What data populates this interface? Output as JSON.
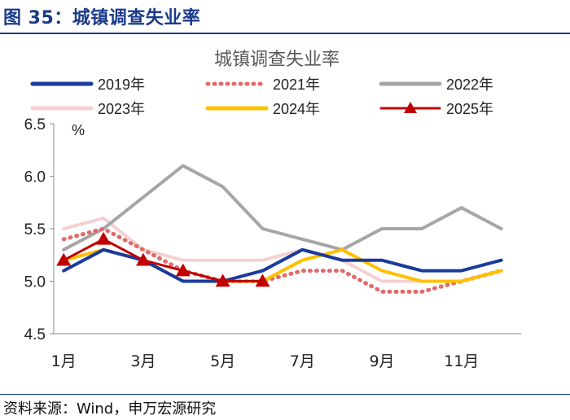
{
  "figure": {
    "title": "图 35：城镇调查失业率",
    "source": "资料来源：Wind，申万宏源研究"
  },
  "chart_data": {
    "type": "line",
    "title": "城镇调查失业率",
    "ylabel": "%",
    "xlabel": "",
    "ylim": [
      4.5,
      6.5
    ],
    "yticks": [
      "6.5",
      "6.0",
      "5.5",
      "5.0",
      "4.5"
    ],
    "ytick_values": [
      6.5,
      6.0,
      5.5,
      5.0,
      4.5
    ],
    "x": [
      1,
      2,
      3,
      4,
      5,
      6,
      7,
      8,
      9,
      10,
      11,
      12
    ],
    "xticks": [
      "1月",
      "3月",
      "5月",
      "7月",
      "9月",
      "11月"
    ],
    "xtick_values": [
      1,
      3,
      5,
      7,
      9,
      11
    ],
    "series": [
      {
        "name": "2019年",
        "color": "#1a3a9c",
        "style": "solid",
        "x": [
          1,
          2,
          3,
          4,
          5,
          6,
          7,
          8,
          9,
          10,
          11,
          12
        ],
        "values": [
          5.1,
          5.3,
          5.2,
          5.0,
          5.0,
          5.1,
          5.3,
          5.2,
          5.2,
          5.1,
          5.1,
          5.2
        ]
      },
      {
        "name": "2021年",
        "color": "#e06b6b",
        "style": "dotted",
        "x": [
          1,
          2,
          3,
          4,
          5,
          6,
          7,
          8,
          9,
          10,
          11,
          12
        ],
        "values": [
          5.4,
          5.5,
          5.3,
          5.1,
          5.0,
          5.0,
          5.1,
          5.1,
          4.9,
          4.9,
          5.0,
          5.1
        ]
      },
      {
        "name": "2022年",
        "color": "#a6a6a6",
        "style": "solid",
        "x": [
          1,
          2,
          3,
          4,
          5,
          6,
          7,
          8,
          9,
          10,
          11,
          12
        ],
        "values": [
          5.3,
          5.5,
          5.8,
          6.1,
          5.9,
          5.5,
          5.4,
          5.3,
          5.5,
          5.5,
          5.7,
          5.5
        ]
      },
      {
        "name": "2023年",
        "color": "#f5d0d0",
        "style": "solid",
        "x": [
          1,
          2,
          3,
          4,
          5,
          6,
          7,
          8,
          9,
          10,
          11,
          12
        ],
        "values": [
          5.5,
          5.6,
          5.3,
          5.2,
          5.2,
          5.2,
          5.3,
          5.2,
          5.0,
          5.0,
          5.0,
          5.1
        ]
      },
      {
        "name": "2024年",
        "color": "#ffc000",
        "style": "solid",
        "x": [
          1,
          2,
          3,
          4,
          5,
          6,
          7,
          8,
          9,
          10,
          11,
          12
        ],
        "values": [
          5.2,
          5.3,
          5.2,
          5.0,
          5.0,
          5.0,
          5.2,
          5.3,
          5.1,
          5.0,
          5.0,
          5.1
        ]
      },
      {
        "name": "2025年",
        "color": "#c00000",
        "style": "solid-triangle",
        "x": [
          1,
          2,
          3,
          4,
          5,
          6
        ],
        "values": [
          5.2,
          5.4,
          5.2,
          5.1,
          5.0,
          5.0
        ]
      }
    ],
    "legend": "top"
  }
}
